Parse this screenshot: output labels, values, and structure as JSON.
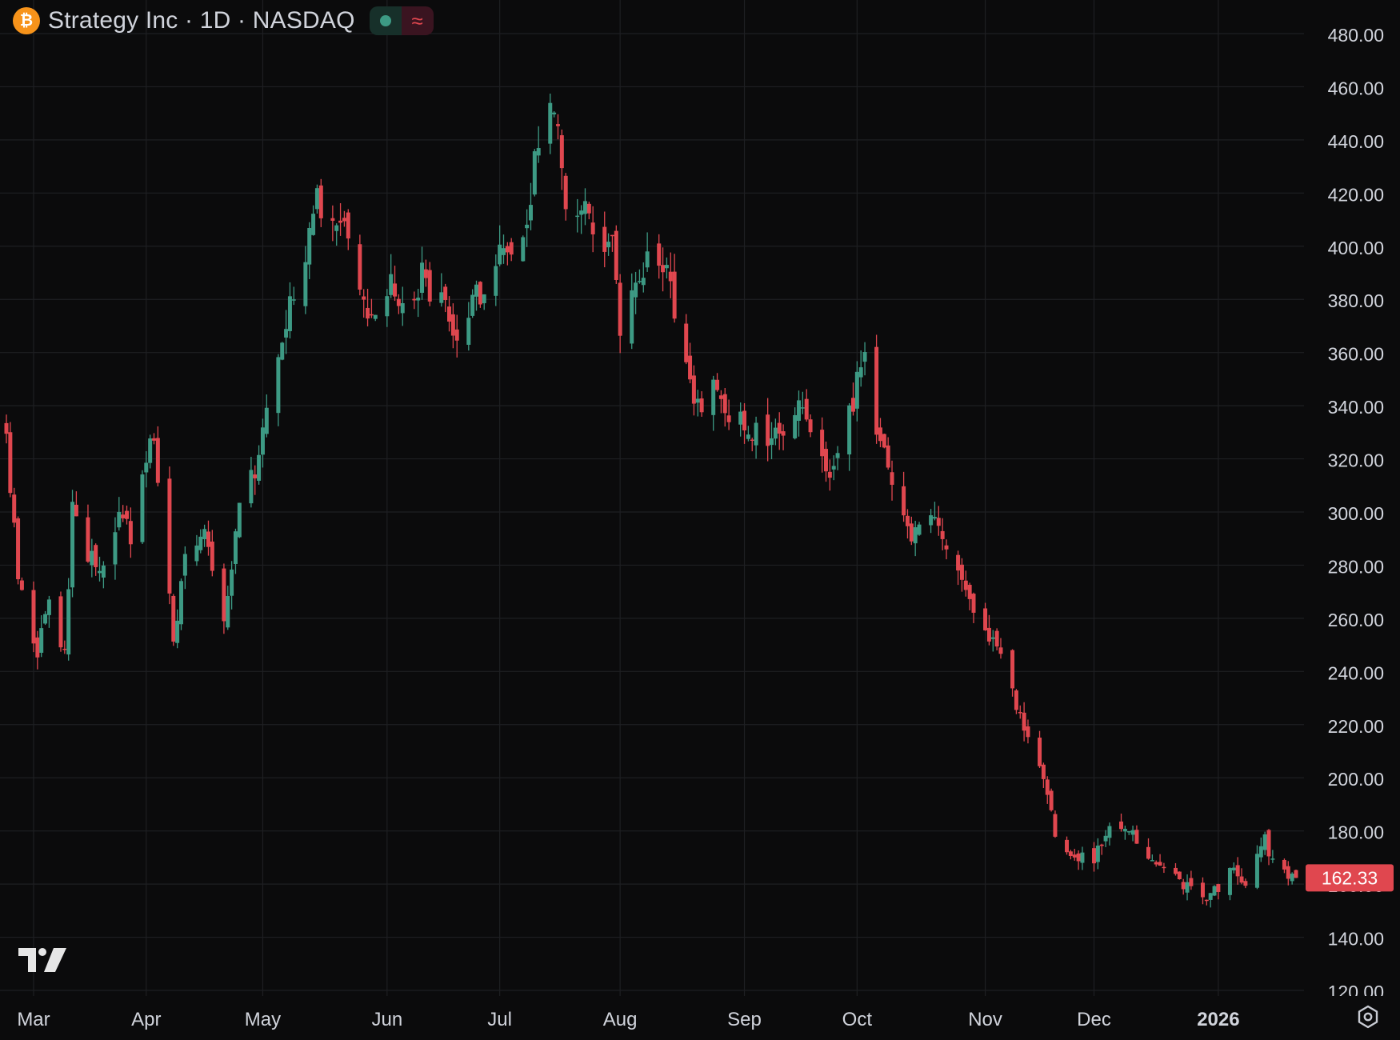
{
  "header": {
    "symbol_icon": "bitcoin-icon",
    "symbol_icon_glyph": "₿",
    "title": "Strategy Inc · 1D · NASDAQ",
    "market_status_icon": "market-open-dot-icon",
    "data_indicator_icon": "approx-icon",
    "data_indicator_glyph": "≈"
  },
  "colors": {
    "background": "#0b0b0c",
    "grid": "#1e1f22",
    "up": "#3d9a84",
    "down": "#e0474f",
    "text": "#d1d4dc",
    "symbol_icon": "#f7931a",
    "status_dot": "#3d9a84",
    "status_bg": "#17302a",
    "indicator_bg": "#3a1420",
    "indicator_text": "#e0474f"
  },
  "chart_data": {
    "type": "candlestick",
    "title": "Strategy Inc · 1D · NASDAQ",
    "y_axis_side": "right",
    "ylim": [
      118,
      486
    ],
    "y_ticks": [
      "120.00",
      "140.00",
      "160.00",
      "180.00",
      "200.00",
      "220.00",
      "240.00",
      "260.00",
      "280.00",
      "300.00",
      "320.00",
      "340.00",
      "360.00",
      "380.00",
      "400.00",
      "420.00",
      "440.00",
      "460.00",
      "480.00"
    ],
    "x_ticks": [
      {
        "label": "Mar",
        "date": "2025-03-03",
        "bold": false
      },
      {
        "label": "Apr",
        "date": "2025-04-01",
        "bold": false
      },
      {
        "label": "May",
        "date": "2025-05-01",
        "bold": false
      },
      {
        "label": "Jun",
        "date": "2025-06-02",
        "bold": false
      },
      {
        "label": "Jul",
        "date": "2025-07-01",
        "bold": false
      },
      {
        "label": "Aug",
        "date": "2025-08-01",
        "bold": false
      },
      {
        "label": "Sep",
        "date": "2025-09-02",
        "bold": false
      },
      {
        "label": "Oct",
        "date": "2025-10-01",
        "bold": false
      },
      {
        "label": "Nov",
        "date": "2025-11-03",
        "bold": false
      },
      {
        "label": "Dec",
        "date": "2025-12-01",
        "bold": false
      },
      {
        "label": "2026",
        "date": "2026-01-02",
        "bold": true
      }
    ],
    "x_range": [
      "2025-02-24",
      "2026-01-22"
    ],
    "last_price": "162.33",
    "last_price_value": 162.33,
    "grid": true,
    "anchors": [
      [
        "2025-02-24",
        325
      ],
      [
        "2025-02-27",
        275
      ],
      [
        "2025-03-04",
        248
      ],
      [
        "2025-03-07",
        265
      ],
      [
        "2025-03-11",
        248
      ],
      [
        "2025-03-13",
        300
      ],
      [
        "2025-03-17",
        285
      ],
      [
        "2025-03-20",
        275
      ],
      [
        "2025-03-25",
        300
      ],
      [
        "2025-03-28",
        290
      ],
      [
        "2025-04-01",
        320
      ],
      [
        "2025-04-03",
        330
      ],
      [
        "2025-04-08",
        250
      ],
      [
        "2025-04-11",
        280
      ],
      [
        "2025-04-16",
        290
      ],
      [
        "2025-04-21",
        258
      ],
      [
        "2025-04-25",
        300
      ],
      [
        "2025-04-30",
        320
      ],
      [
        "2025-05-05",
        360
      ],
      [
        "2025-05-08",
        380
      ],
      [
        "2025-05-12",
        400
      ],
      [
        "2025-05-15",
        420
      ],
      [
        "2025-05-19",
        405
      ],
      [
        "2025-05-22",
        412
      ],
      [
        "2025-05-27",
        375
      ],
      [
        "2025-05-30",
        370
      ],
      [
        "2025-06-03",
        385
      ],
      [
        "2025-06-06",
        375
      ],
      [
        "2025-06-11",
        388
      ],
      [
        "2025-06-16",
        380
      ],
      [
        "2025-06-20",
        368
      ],
      [
        "2025-06-25",
        380
      ],
      [
        "2025-06-30",
        395
      ],
      [
        "2025-07-03",
        400
      ],
      [
        "2025-07-08",
        412
      ],
      [
        "2025-07-11",
        440
      ],
      [
        "2025-07-14",
        452
      ],
      [
        "2025-07-16",
        450
      ],
      [
        "2025-07-18",
        420
      ],
      [
        "2025-07-22",
        415
      ],
      [
        "2025-07-25",
        405
      ],
      [
        "2025-07-30",
        400
      ],
      [
        "2025-08-01",
        372
      ],
      [
        "2025-08-05",
        385
      ],
      [
        "2025-08-08",
        398
      ],
      [
        "2025-08-12",
        395
      ],
      [
        "2025-08-15",
        378
      ],
      [
        "2025-08-20",
        340
      ],
      [
        "2025-08-25",
        345
      ],
      [
        "2025-08-29",
        338
      ],
      [
        "2025-09-03",
        330
      ],
      [
        "2025-09-08",
        328
      ],
      [
        "2025-09-12",
        330
      ],
      [
        "2025-09-16",
        345
      ],
      [
        "2025-09-19",
        330
      ],
      [
        "2025-09-24",
        310
      ],
      [
        "2025-09-29",
        335
      ],
      [
        "2025-10-03",
        360
      ],
      [
        "2025-10-07",
        325
      ],
      [
        "2025-10-10",
        310
      ],
      [
        "2025-10-15",
        290
      ],
      [
        "2025-10-20",
        295
      ],
      [
        "2025-10-24",
        290
      ],
      [
        "2025-10-29",
        270
      ],
      [
        "2025-11-03",
        255
      ],
      [
        "2025-11-07",
        245
      ],
      [
        "2025-11-12",
        225
      ],
      [
        "2025-11-18",
        200
      ],
      [
        "2025-11-21",
        178
      ],
      [
        "2025-11-26",
        170
      ],
      [
        "2025-12-01",
        170
      ],
      [
        "2025-12-05",
        180
      ],
      [
        "2025-12-10",
        182
      ],
      [
        "2025-12-15",
        168
      ],
      [
        "2025-12-19",
        165
      ],
      [
        "2025-12-24",
        160
      ],
      [
        "2025-12-31",
        155
      ],
      [
        "2026-01-06",
        166
      ],
      [
        "2026-01-09",
        160
      ],
      [
        "2026-01-14",
        178
      ],
      [
        "2026-01-16",
        168
      ],
      [
        "2026-01-20",
        162.33
      ]
    ]
  }
}
